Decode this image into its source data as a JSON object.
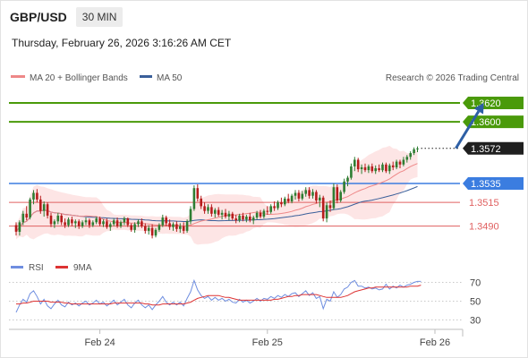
{
  "header": {
    "instrument": "GBP/USD",
    "timeframe": "30 MIN",
    "datetime": "Thursday, February 26, 2026 3:16:26 AM CET"
  },
  "legend": {
    "ma20_label": "MA 20 + Bollinger Bands",
    "ma50_label": "MA 50",
    "credit": "Research © 2026 Trading Central",
    "rsi_label": "RSI",
    "rsi_ma_label": "9MA"
  },
  "colors": {
    "resistance": "#4a9a0a",
    "support": "#3b7de0",
    "level": "#e06060",
    "current": "#1f1f1f",
    "arrow": "#2d5fa5",
    "ma20": "#ee8888",
    "ma50": "#3a5f9a",
    "band": "#fde0e0",
    "bull": "#2e7d32",
    "bear": "#b71c1c",
    "rsi": "#6f8ee0",
    "rsi_ma": "#dd3333"
  },
  "chart_data": [
    {
      "type": "candlestick",
      "title": "",
      "ylim": [
        1.3466,
        1.3636
      ],
      "x_ticks": [
        {
          "label": "Feb 24",
          "bar": 24
        },
        {
          "label": "Feb 25",
          "bar": 72
        },
        {
          "label": "Feb 26",
          "bar": 120
        }
      ],
      "levels": [
        {
          "label": "1.3620",
          "value": 1.362,
          "kind": "resistance"
        },
        {
          "label": "1.3600",
          "value": 1.36,
          "kind": "resistance"
        },
        {
          "label": "1.3572",
          "value": 1.3572,
          "kind": "current"
        },
        {
          "label": "1.3535",
          "value": 1.3535,
          "kind": "support"
        },
        {
          "label": "1.3515",
          "value": 1.3515,
          "kind": "level"
        },
        {
          "label": "1.3490",
          "value": 1.349,
          "kind": "level"
        }
      ],
      "arrow": {
        "from": {
          "bar": 126,
          "price": 1.3572
        },
        "to": {
          "bar": 134,
          "price": 1.362
        }
      },
      "ohlc": [
        [
          1.3491,
          1.3494,
          1.348,
          1.3484
        ],
        [
          1.3484,
          1.3496,
          1.348,
          1.3494
        ],
        [
          1.3494,
          1.3506,
          1.3491,
          1.3503
        ],
        [
          1.3503,
          1.3511,
          1.3496,
          1.3499
        ],
        [
          1.3499,
          1.352,
          1.3497,
          1.3518
        ],
        [
          1.3518,
          1.3528,
          1.3513,
          1.3525
        ],
        [
          1.3525,
          1.3529,
          1.3515,
          1.3518
        ],
        [
          1.3518,
          1.3522,
          1.3503,
          1.3506
        ],
        [
          1.3506,
          1.3516,
          1.35,
          1.3513
        ],
        [
          1.3513,
          1.3515,
          1.3498,
          1.3501
        ],
        [
          1.3501,
          1.3504,
          1.3489,
          1.3492
        ],
        [
          1.3492,
          1.3497,
          1.3488,
          1.3495
        ],
        [
          1.3495,
          1.3504,
          1.3492,
          1.3501
        ],
        [
          1.3501,
          1.3503,
          1.3491,
          1.3494
        ],
        [
          1.3494,
          1.3498,
          1.3488,
          1.3491
        ],
        [
          1.3491,
          1.3499,
          1.3489,
          1.3497
        ],
        [
          1.3497,
          1.35,
          1.349,
          1.3493
        ],
        [
          1.3493,
          1.3497,
          1.3488,
          1.3495
        ],
        [
          1.3495,
          1.3497,
          1.3487,
          1.349
        ],
        [
          1.349,
          1.3496,
          1.3488,
          1.3494
        ],
        [
          1.3494,
          1.3499,
          1.3491,
          1.3496
        ],
        [
          1.3496,
          1.3498,
          1.3488,
          1.3491
        ],
        [
          1.3491,
          1.3496,
          1.3489,
          1.3494
        ],
        [
          1.3494,
          1.35,
          1.3492,
          1.3498
        ],
        [
          1.3498,
          1.35,
          1.349,
          1.3492
        ],
        [
          1.3492,
          1.3497,
          1.3489,
          1.3495
        ],
        [
          1.3495,
          1.3498,
          1.3487,
          1.3489
        ],
        [
          1.3489,
          1.3494,
          1.3485,
          1.3492
        ],
        [
          1.3492,
          1.3498,
          1.349,
          1.3496
        ],
        [
          1.3496,
          1.3499,
          1.3488,
          1.349
        ],
        [
          1.349,
          1.3496,
          1.3488,
          1.3494
        ],
        [
          1.3494,
          1.35,
          1.3491,
          1.3498
        ],
        [
          1.3498,
          1.3499,
          1.3489,
          1.3491
        ],
        [
          1.3491,
          1.3493,
          1.3484,
          1.3486
        ],
        [
          1.3486,
          1.3494,
          1.3483,
          1.3492
        ],
        [
          1.3492,
          1.3497,
          1.3489,
          1.3495
        ],
        [
          1.3495,
          1.3498,
          1.3488,
          1.349
        ],
        [
          1.349,
          1.3493,
          1.3482,
          1.3485
        ],
        [
          1.3485,
          1.3491,
          1.3481,
          1.3488
        ],
        [
          1.3488,
          1.3492,
          1.3477,
          1.348
        ],
        [
          1.348,
          1.3488,
          1.3478,
          1.3486
        ],
        [
          1.3486,
          1.3493,
          1.3484,
          1.3491
        ],
        [
          1.3491,
          1.3502,
          1.3489,
          1.3499
        ],
        [
          1.3499,
          1.3501,
          1.349,
          1.3493
        ],
        [
          1.3493,
          1.3497,
          1.3486,
          1.3489
        ],
        [
          1.3489,
          1.3494,
          1.3485,
          1.3492
        ],
        [
          1.3492,
          1.3495,
          1.3484,
          1.3487
        ],
        [
          1.3487,
          1.3493,
          1.3483,
          1.349
        ],
        [
          1.349,
          1.3494,
          1.3482,
          1.3485
        ],
        [
          1.3485,
          1.3497,
          1.3483,
          1.3495
        ],
        [
          1.3495,
          1.3511,
          1.3492,
          1.3508
        ],
        [
          1.3508,
          1.3533,
          1.3506,
          1.353
        ],
        [
          1.353,
          1.3534,
          1.3516,
          1.3519
        ],
        [
          1.3519,
          1.3522,
          1.3508,
          1.3511
        ],
        [
          1.3511,
          1.3515,
          1.3503,
          1.3506
        ],
        [
          1.3506,
          1.3513,
          1.3503,
          1.351
        ],
        [
          1.351,
          1.3513,
          1.35,
          1.3503
        ],
        [
          1.3503,
          1.3509,
          1.3499,
          1.3507
        ],
        [
          1.3507,
          1.351,
          1.35,
          1.3502
        ],
        [
          1.3502,
          1.3507,
          1.3497,
          1.3504
        ],
        [
          1.3504,
          1.3508,
          1.3498,
          1.35
        ],
        [
          1.35,
          1.3506,
          1.3496,
          1.3503
        ],
        [
          1.3503,
          1.3505,
          1.3496,
          1.3498
        ],
        [
          1.3498,
          1.3502,
          1.3493,
          1.3496
        ],
        [
          1.3496,
          1.3503,
          1.3494,
          1.3501
        ],
        [
          1.3501,
          1.3504,
          1.3495,
          1.3497
        ],
        [
          1.3497,
          1.3502,
          1.3494,
          1.35
        ],
        [
          1.35,
          1.3504,
          1.3494,
          1.3496
        ],
        [
          1.3496,
          1.3501,
          1.3492,
          1.3499
        ],
        [
          1.3499,
          1.3506,
          1.3497,
          1.3504
        ],
        [
          1.3504,
          1.3507,
          1.3498,
          1.35
        ],
        [
          1.35,
          1.3508,
          1.3498,
          1.3506
        ],
        [
          1.3506,
          1.3511,
          1.3502,
          1.3505
        ],
        [
          1.3505,
          1.3513,
          1.3503,
          1.3511
        ],
        [
          1.3511,
          1.3516,
          1.3506,
          1.3509
        ],
        [
          1.3509,
          1.3517,
          1.3507,
          1.3515
        ],
        [
          1.3515,
          1.352,
          1.351,
          1.3513
        ],
        [
          1.3513,
          1.3521,
          1.3511,
          1.3519
        ],
        [
          1.3519,
          1.3524,
          1.3514,
          1.3516
        ],
        [
          1.3516,
          1.3524,
          1.3514,
          1.3522
        ],
        [
          1.3522,
          1.3528,
          1.3518,
          1.3525
        ],
        [
          1.3525,
          1.3528,
          1.3516,
          1.3519
        ],
        [
          1.3519,
          1.3527,
          1.3517,
          1.3524
        ],
        [
          1.3524,
          1.3531,
          1.3521,
          1.3528
        ],
        [
          1.3528,
          1.3531,
          1.3519,
          1.3522
        ],
        [
          1.3522,
          1.3529,
          1.3519,
          1.3526
        ],
        [
          1.3526,
          1.3528,
          1.3514,
          1.3517
        ],
        [
          1.3517,
          1.3523,
          1.351,
          1.352
        ],
        [
          1.352,
          1.3522,
          1.3495,
          1.3498
        ],
        [
          1.3498,
          1.3515,
          1.3494,
          1.3512
        ],
        [
          1.3512,
          1.3517,
          1.3505,
          1.3509
        ],
        [
          1.3509,
          1.3535,
          1.3507,
          1.3531
        ],
        [
          1.3531,
          1.3534,
          1.3514,
          1.3517
        ],
        [
          1.3517,
          1.3528,
          1.3515,
          1.3526
        ],
        [
          1.3526,
          1.354,
          1.3524,
          1.3537
        ],
        [
          1.3537,
          1.3543,
          1.3532,
          1.3541
        ],
        [
          1.3541,
          1.3556,
          1.3539,
          1.3553
        ],
        [
          1.3553,
          1.3563,
          1.3548,
          1.356
        ],
        [
          1.356,
          1.3562,
          1.3547,
          1.355
        ],
        [
          1.355,
          1.3555,
          1.3545,
          1.3552
        ],
        [
          1.3552,
          1.3556,
          1.3547,
          1.3549
        ],
        [
          1.3549,
          1.3555,
          1.3546,
          1.3553
        ],
        [
          1.3553,
          1.3556,
          1.3546,
          1.3548
        ],
        [
          1.3548,
          1.3554,
          1.3545,
          1.3551
        ],
        [
          1.3551,
          1.3555,
          1.3547,
          1.3549
        ],
        [
          1.3549,
          1.3557,
          1.3547,
          1.3555
        ],
        [
          1.3555,
          1.3557,
          1.3546,
          1.3548
        ],
        [
          1.3548,
          1.3556,
          1.3545,
          1.3554
        ],
        [
          1.3554,
          1.3558,
          1.3549,
          1.3552
        ],
        [
          1.3552,
          1.356,
          1.355,
          1.3558
        ],
        [
          1.3558,
          1.356,
          1.3551,
          1.3555
        ],
        [
          1.3555,
          1.3563,
          1.3553,
          1.356
        ],
        [
          1.356,
          1.3565,
          1.3557,
          1.3563
        ],
        [
          1.3563,
          1.3569,
          1.356,
          1.3567
        ],
        [
          1.3567,
          1.3573,
          1.3565,
          1.3571
        ],
        [
          1.3571,
          1.3574,
          1.3568,
          1.3572
        ]
      ]
    },
    {
      "type": "line",
      "title": "",
      "ylim": [
        20,
        80
      ],
      "y_ticks": [
        70,
        50,
        30
      ],
      "series": [
        {
          "name": "RSI",
          "values": [
            38,
            46,
            52,
            49,
            58,
            61,
            55,
            47,
            52,
            45,
            42,
            47,
            51,
            46,
            44,
            49,
            46,
            48,
            45,
            48,
            50,
            46,
            48,
            51,
            47,
            49,
            45,
            48,
            51,
            46,
            49,
            52,
            46,
            43,
            48,
            51,
            46,
            43,
            46,
            41,
            46,
            50,
            55,
            49,
            46,
            49,
            46,
            49,
            45,
            53,
            60,
            72,
            62,
            56,
            53,
            55,
            51,
            54,
            51,
            53,
            50,
            52,
            49,
            48,
            52,
            49,
            51,
            48,
            50,
            53,
            50,
            53,
            52,
            55,
            53,
            56,
            54,
            57,
            55,
            58,
            59,
            55,
            58,
            61,
            56,
            59,
            53,
            55,
            42,
            52,
            50,
            60,
            54,
            57,
            63,
            65,
            70,
            72,
            66,
            66,
            64,
            65,
            63,
            64,
            62,
            63,
            68,
            63,
            66,
            64,
            67,
            65,
            67,
            68,
            70,
            71,
            71
          ]
        },
        {
          "name": "9MA",
          "values": [
            47,
            47,
            48,
            48,
            49,
            50,
            50,
            50,
            50,
            50,
            49,
            49,
            49,
            49,
            48,
            48,
            47,
            47,
            47,
            47,
            47,
            47,
            47,
            47,
            47,
            47,
            47,
            47,
            48,
            48,
            48,
            48,
            48,
            48,
            48,
            48,
            48,
            47,
            47,
            46,
            46,
            46,
            47,
            47,
            47,
            47,
            47,
            47,
            47,
            48,
            49,
            51,
            53,
            54,
            55,
            56,
            56,
            56,
            56,
            55,
            54,
            54,
            53,
            52,
            51,
            51,
            51,
            51,
            51,
            51,
            51,
            51,
            51,
            51,
            52,
            52,
            53,
            54,
            55,
            55,
            56,
            56,
            57,
            57,
            57,
            57,
            57,
            56,
            55,
            54,
            54,
            54,
            54,
            54,
            55,
            56,
            58,
            60,
            61,
            62,
            63,
            64,
            64,
            65,
            65,
            65,
            65,
            65,
            65,
            65,
            65,
            65,
            65,
            66,
            66,
            66,
            67
          ]
        }
      ]
    }
  ]
}
